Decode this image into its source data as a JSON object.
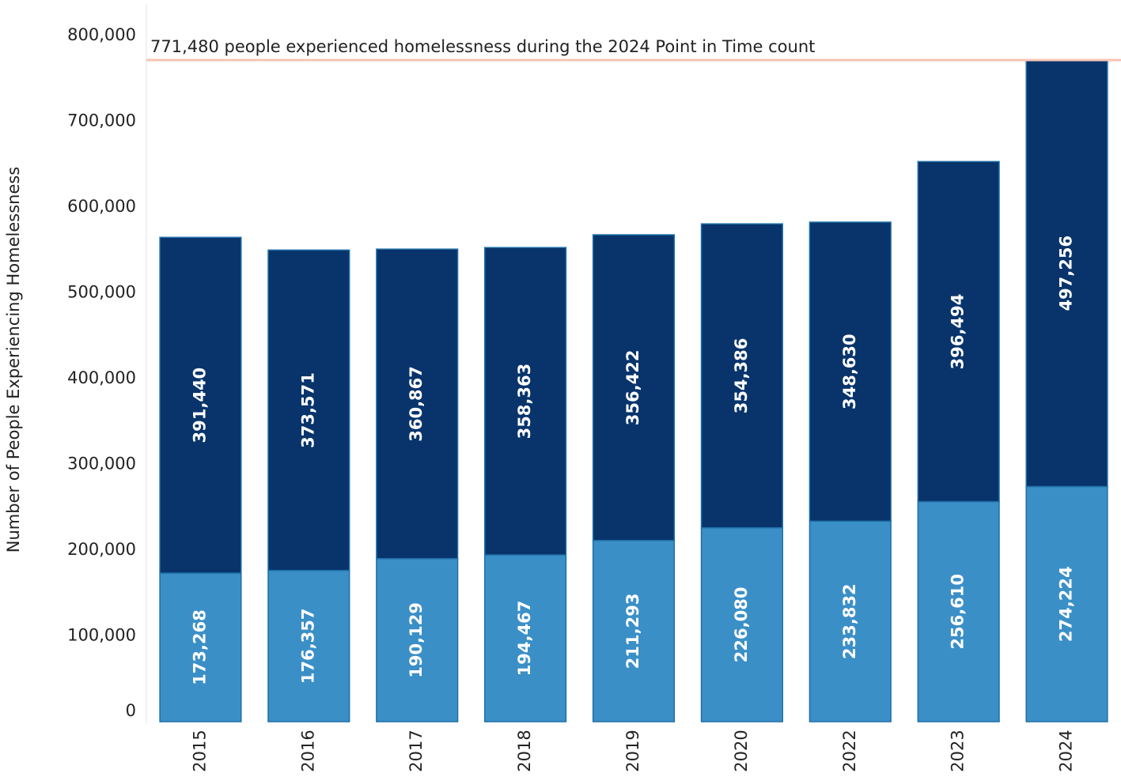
{
  "chart_data": {
    "type": "stacked_bar",
    "y_axis_label": "Number of People Experiencing Homelessness",
    "categories": [
      "2015",
      "2016",
      "2017",
      "2018",
      "2019",
      "2020",
      "2022",
      "2023",
      "2024"
    ],
    "series": [
      {
        "color": "#3b8fc7",
        "values": [
          173268,
          176357,
          190129,
          194467,
          211293,
          226080,
          233832,
          256610,
          274224
        ],
        "value_labels": [
          "173,268",
          "176,357",
          "190,129",
          "194,467",
          "211,293",
          "226,080",
          "233,832",
          "256,610",
          "274,224"
        ]
      },
      {
        "color": "#08346b",
        "values": [
          391440,
          373571,
          360867,
          358363,
          356422,
          354386,
          348630,
          396494,
          497256
        ],
        "value_labels": [
          "391,440",
          "373,571",
          "360,867",
          "358,363",
          "356,422",
          "354,386",
          "348,630",
          "396,494",
          "497,256"
        ]
      }
    ],
    "ylim": [
      0,
      800000
    ],
    "yticks": [
      0,
      {
        "value": 100000,
        "label": "100,000"
      },
      {
        "value": 200000,
        "label": "200,000"
      },
      {
        "value": 300000,
        "label": "300,000"
      },
      {
        "value": 400000,
        "label": "400,000"
      },
      {
        "value": 500000,
        "label": "500,000"
      },
      {
        "value": 600000,
        "label": "600,000"
      },
      {
        "value": 700000,
        "label": "700,000"
      },
      {
        "value": 800000,
        "label": "800,000"
      }
    ],
    "reference_line": {
      "value": 771480,
      "label": "771,480 people experienced homelessness during the 2024 Point in Time count",
      "color": "#f6c5b5"
    }
  }
}
